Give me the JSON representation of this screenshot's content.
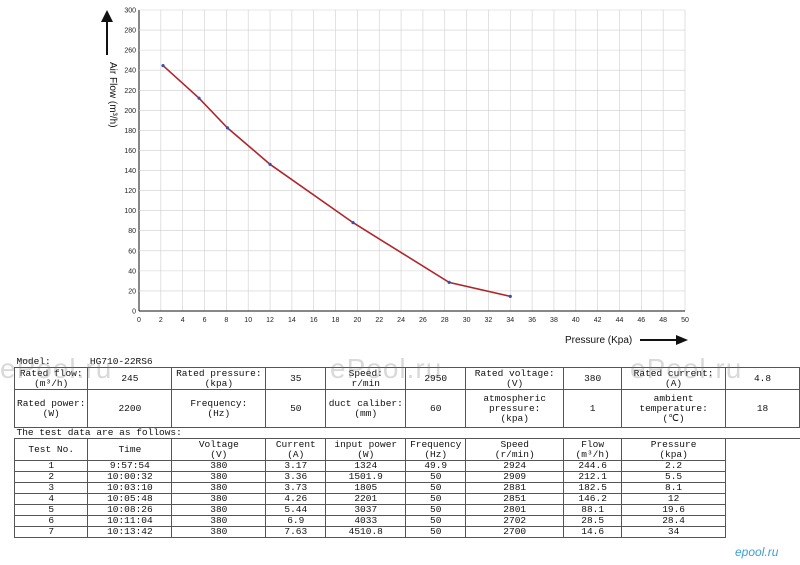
{
  "chart_data": {
    "type": "line",
    "xlabel": "Pressure (Kpa)",
    "ylabel": "Air Flow (m³/h)",
    "xlim": [
      0,
      50
    ],
    "ylim": [
      0,
      300
    ],
    "x_ticks": [
      0,
      2,
      4,
      6,
      8,
      10,
      12,
      14,
      16,
      18,
      20,
      22,
      24,
      26,
      28,
      30,
      32,
      34,
      36,
      38,
      40,
      42,
      44,
      46,
      48,
      50
    ],
    "y_ticks": [
      0,
      20,
      40,
      60,
      80,
      100,
      120,
      140,
      160,
      180,
      200,
      220,
      240,
      260,
      280,
      300
    ],
    "grid": true,
    "series_color": "#b0252a",
    "marker_color": "#3a4fb5",
    "x": [
      2.2,
      5.5,
      8.1,
      12,
      19.6,
      28.4,
      34
    ],
    "y": [
      244.6,
      212.1,
      182.5,
      146.2,
      88.1,
      28.5,
      14.6
    ]
  },
  "spec": {
    "model_label": "Model:",
    "model_value": "HG710-22RS6",
    "rated_flow_label": "Rated flow:\n(m³/h)",
    "rated_flow_value": "245",
    "rated_pressure_label": "Rated pressure:\n(kpa)",
    "rated_pressure_value": "35",
    "speed_label": "Speed:\nr/min",
    "speed_value": "2950",
    "rated_voltage_label": "Rated voltage:\n(V)",
    "rated_voltage_value": "380",
    "rated_current_label": "Rated current:\n(A)",
    "rated_current_value": "4.8",
    "rated_power_label": "Rated power:\n(W)",
    "rated_power_value": "2200",
    "frequency_label": "Frequency:\n(Hz)",
    "frequency_value": "50",
    "duct_label": "duct caliber:\n(mm)",
    "duct_value": "60",
    "atm_label": "atmospheric\npressure:\n(kpa)",
    "atm_value": "1",
    "ambient_label": "ambient\ntemperature:\n(℃)",
    "ambient_value": "18",
    "test_intro": "The test data are as follows:"
  },
  "test_table": {
    "headers": [
      "Test No.",
      "Time",
      "Voltage\n(V)",
      "Current\n(A)",
      "input power\n(W)",
      "Frequency\n(Hz)",
      "Speed\n(r/min)",
      "Flow\n(m³/h)",
      "Pressure\n(kpa)"
    ],
    "rows": [
      [
        "1",
        "9:57:54",
        "380",
        "3.17",
        "1324",
        "49.9",
        "2924",
        "244.6",
        "2.2"
      ],
      [
        "2",
        "10:00:32",
        "380",
        "3.36",
        "1501.9",
        "50",
        "2909",
        "212.1",
        "5.5"
      ],
      [
        "3",
        "10:03:10",
        "380",
        "3.73",
        "1805",
        "50",
        "2881",
        "182.5",
        "8.1"
      ],
      [
        "4",
        "10:05:48",
        "380",
        "4.26",
        "2201",
        "50",
        "2851",
        "146.2",
        "12"
      ],
      [
        "5",
        "10:08:26",
        "380",
        "5.44",
        "3037",
        "50",
        "2801",
        "88.1",
        "19.6"
      ],
      [
        "6",
        "10:11:04",
        "380",
        "6.9",
        "4033",
        "50",
        "2702",
        "28.5",
        "28.4"
      ],
      [
        "7",
        "10:13:42",
        "380",
        "7.63",
        "4510.8",
        "50",
        "2700",
        "14.6",
        "34"
      ]
    ]
  },
  "watermarks": [
    "ePool.ru",
    "ePool.ru",
    "ePool.ru"
  ],
  "logo_text": "epool.ru"
}
